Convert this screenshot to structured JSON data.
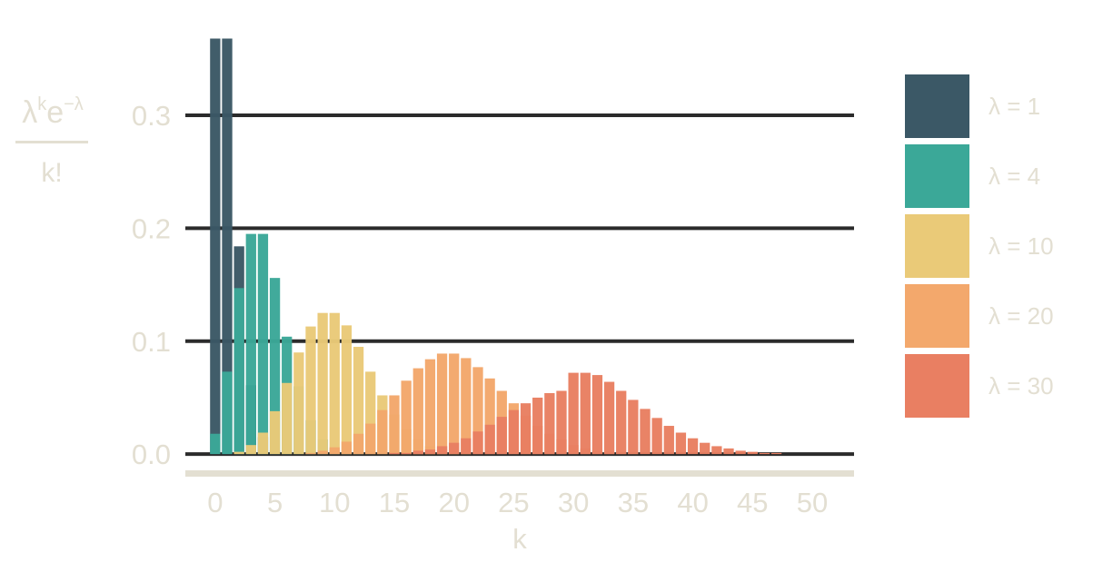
{
  "chart_data": {
    "type": "bar",
    "xlabel": "k",
    "ylabel": {
      "numerator_base": "λ",
      "numerator_exp1": "k",
      "numerator_mid": "e",
      "numerator_exp2": "−λ",
      "denominator": "k!"
    },
    "xlim": [
      -2.5,
      53.5
    ],
    "ylim": [
      -0.02,
      0.37
    ],
    "x_ticks": [
      0,
      5,
      10,
      15,
      20,
      25,
      30,
      35,
      40,
      45,
      50
    ],
    "x_tick_labels": [
      "0",
      "5",
      "10",
      "15",
      "20",
      "25",
      "30",
      "35",
      "40",
      "45",
      "50"
    ],
    "y_ticks": [
      0.0,
      0.1,
      0.2,
      0.3
    ],
    "y_tick_labels": [
      "0.0",
      "0.1",
      "0.2",
      "0.3"
    ],
    "grid": true,
    "legend_position": "right",
    "x": [
      0,
      1,
      2,
      3,
      4,
      5,
      6,
      7,
      8,
      9,
      10,
      11,
      12,
      13,
      14,
      15,
      16,
      17,
      18,
      19,
      20,
      21,
      22,
      23,
      24,
      25,
      26,
      27,
      28,
      29,
      30,
      31,
      32,
      33,
      34,
      35,
      36,
      37,
      38,
      39,
      40,
      41,
      42,
      43,
      44,
      45,
      46,
      47,
      48,
      49,
      50
    ],
    "series": [
      {
        "name": "λ = 1",
        "lambda": 1,
        "color": "#3b5866",
        "values": [
          0.368,
          0.368,
          0.184,
          0.061,
          0.015,
          0.003,
          0.001,
          0,
          0,
          0,
          0,
          0,
          0,
          0,
          0,
          0,
          0,
          0,
          0,
          0,
          0,
          0,
          0,
          0,
          0,
          0,
          0,
          0,
          0,
          0,
          0,
          0,
          0,
          0,
          0,
          0,
          0,
          0,
          0,
          0,
          0,
          0,
          0,
          0,
          0,
          0,
          0,
          0,
          0,
          0,
          0
        ]
      },
      {
        "name": "λ = 4",
        "lambda": 4,
        "color": "#3ba898",
        "values": [
          0.018,
          0.073,
          0.147,
          0.195,
          0.195,
          0.156,
          0.104,
          0.06,
          0.03,
          0.013,
          0.005,
          0.002,
          0.001,
          0,
          0,
          0,
          0,
          0,
          0,
          0,
          0,
          0,
          0,
          0,
          0,
          0,
          0,
          0,
          0,
          0,
          0,
          0,
          0,
          0,
          0,
          0,
          0,
          0,
          0,
          0,
          0,
          0,
          0,
          0,
          0,
          0,
          0,
          0,
          0,
          0,
          0
        ]
      },
      {
        "name": "λ = 10",
        "lambda": 10,
        "color": "#eaca78",
        "values": [
          0,
          0,
          0.002,
          0.008,
          0.019,
          0.038,
          0.063,
          0.09,
          0.113,
          0.125,
          0.125,
          0.114,
          0.095,
          0.073,
          0.052,
          0.035,
          0.022,
          0.013,
          0.007,
          0.004,
          0.002,
          0.001,
          0,
          0,
          0,
          0,
          0,
          0,
          0,
          0,
          0,
          0,
          0,
          0,
          0,
          0,
          0,
          0,
          0,
          0,
          0,
          0,
          0,
          0,
          0,
          0,
          0,
          0,
          0,
          0,
          0
        ]
      },
      {
        "name": "λ = 20",
        "lambda": 20,
        "color": "#f3a86c",
        "values": [
          0,
          0,
          0,
          0,
          0,
          0,
          0,
          0,
          0.001,
          0.003,
          0.006,
          0.011,
          0.018,
          0.027,
          0.039,
          0.052,
          0.065,
          0.076,
          0.084,
          0.089,
          0.089,
          0.085,
          0.077,
          0.067,
          0.056,
          0.045,
          0.034,
          0.025,
          0.018,
          0.013,
          0.008,
          0.005,
          0.003,
          0.002,
          0.001,
          0.001,
          0,
          0,
          0,
          0,
          0,
          0,
          0,
          0,
          0,
          0,
          0,
          0,
          0,
          0,
          0
        ]
      },
      {
        "name": "λ = 30",
        "lambda": 30,
        "color": "#e97f62",
        "values": [
          0,
          0,
          0,
          0,
          0,
          0,
          0,
          0,
          0,
          0,
          0,
          0,
          0,
          0,
          0,
          0.001,
          0.001,
          0.003,
          0.004,
          0.007,
          0.01,
          0.014,
          0.02,
          0.026,
          0.033,
          0.039,
          0.045,
          0.05,
          0.054,
          0.056,
          0.072,
          0.072,
          0.07,
          0.064,
          0.056,
          0.048,
          0.04,
          0.032,
          0.025,
          0.019,
          0.014,
          0.01,
          0.007,
          0.005,
          0.003,
          0.002,
          0.001,
          0.001,
          0,
          0,
          0
        ]
      }
    ]
  }
}
